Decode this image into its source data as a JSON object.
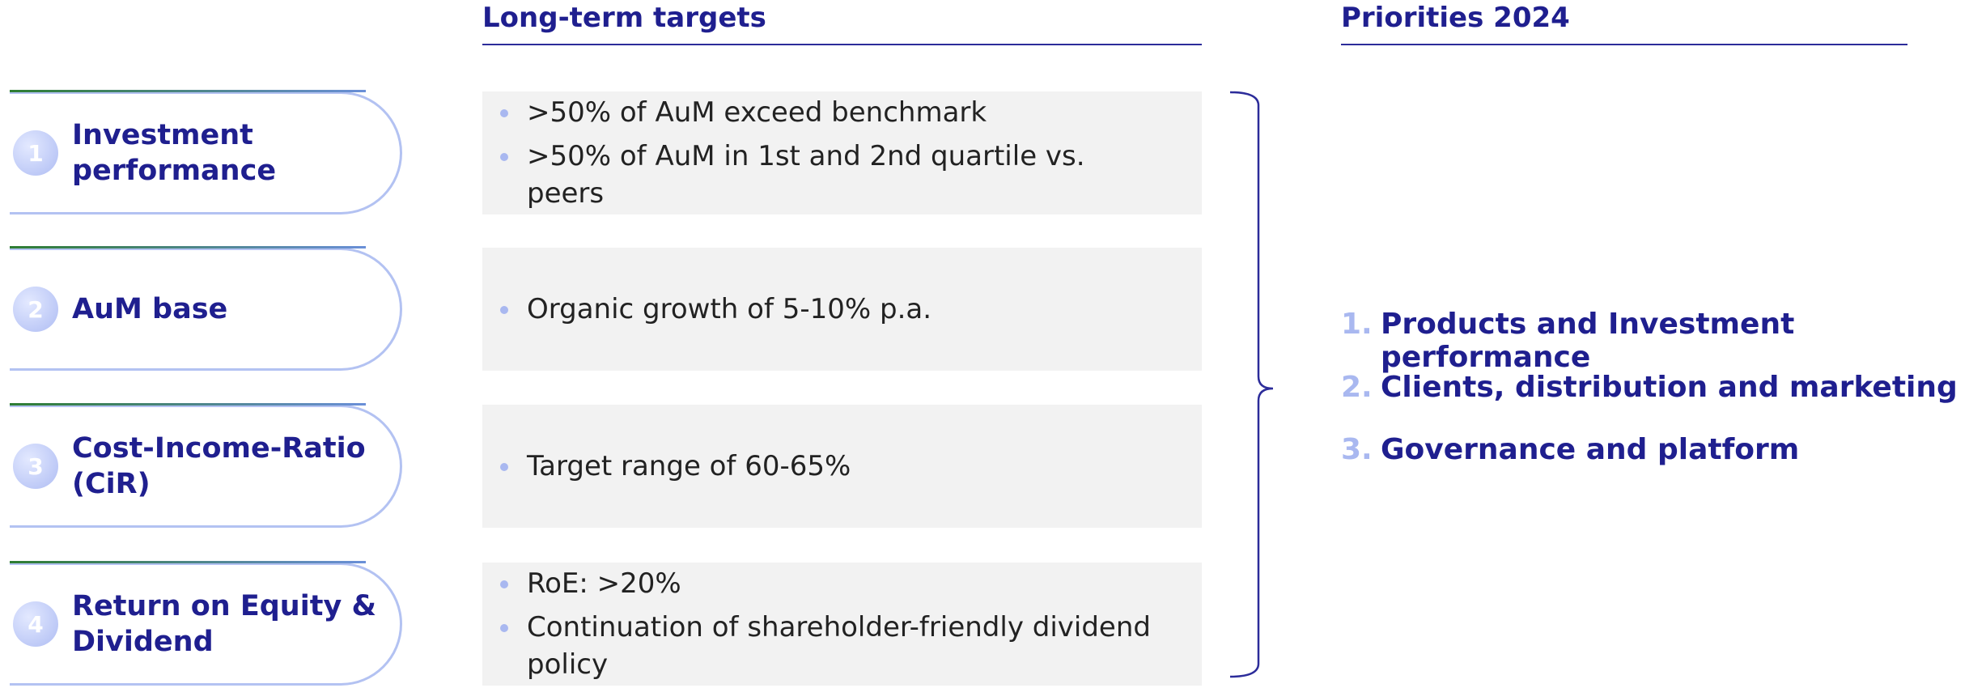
{
  "header": {
    "targets_title": "Long-term targets",
    "priorities_title": "Priorities 2024"
  },
  "rows": [
    {
      "number": "1",
      "label": "Investment performance",
      "bullets": [
        ">50% of AuM exceed benchmark",
        ">50% of AuM in 1st and 2nd quartile vs. peers"
      ]
    },
    {
      "number": "2",
      "label": "AuM base",
      "bullets": [
        "Organic growth of 5-10% p.a."
      ]
    },
    {
      "number": "3",
      "label": "Cost-Income-Ratio (CiR)",
      "bullets": [
        "Target range of 60-65%"
      ]
    },
    {
      "number": "4",
      "label": "Return on Equity & Dividend",
      "bullets": [
        "RoE: >20%",
        "Continuation of shareholder-friendly dividend policy"
      ]
    }
  ],
  "priorities": [
    {
      "number": "1.",
      "text": "Products and Investment performance"
    },
    {
      "number": "2.",
      "text": "Clients, distribution and marketing"
    },
    {
      "number": "3.",
      "text": "Governance and platform"
    }
  ]
}
